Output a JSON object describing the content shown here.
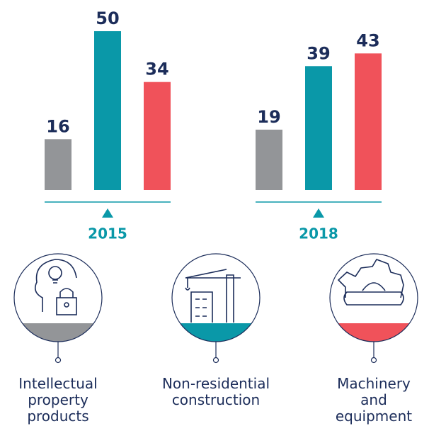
{
  "chart_data": {
    "type": "bar",
    "categories": [
      "2015",
      "2018"
    ],
    "series": [
      {
        "name": "Intellectual property products",
        "color": "#939598",
        "values": [
          16,
          19
        ]
      },
      {
        "name": "Non-residential construction",
        "color": "#0a98a8",
        "values": [
          50,
          39
        ]
      },
      {
        "name": "Machinery and equipment",
        "color": "#f0525a",
        "values": [
          34,
          43
        ]
      }
    ]
  }
}
